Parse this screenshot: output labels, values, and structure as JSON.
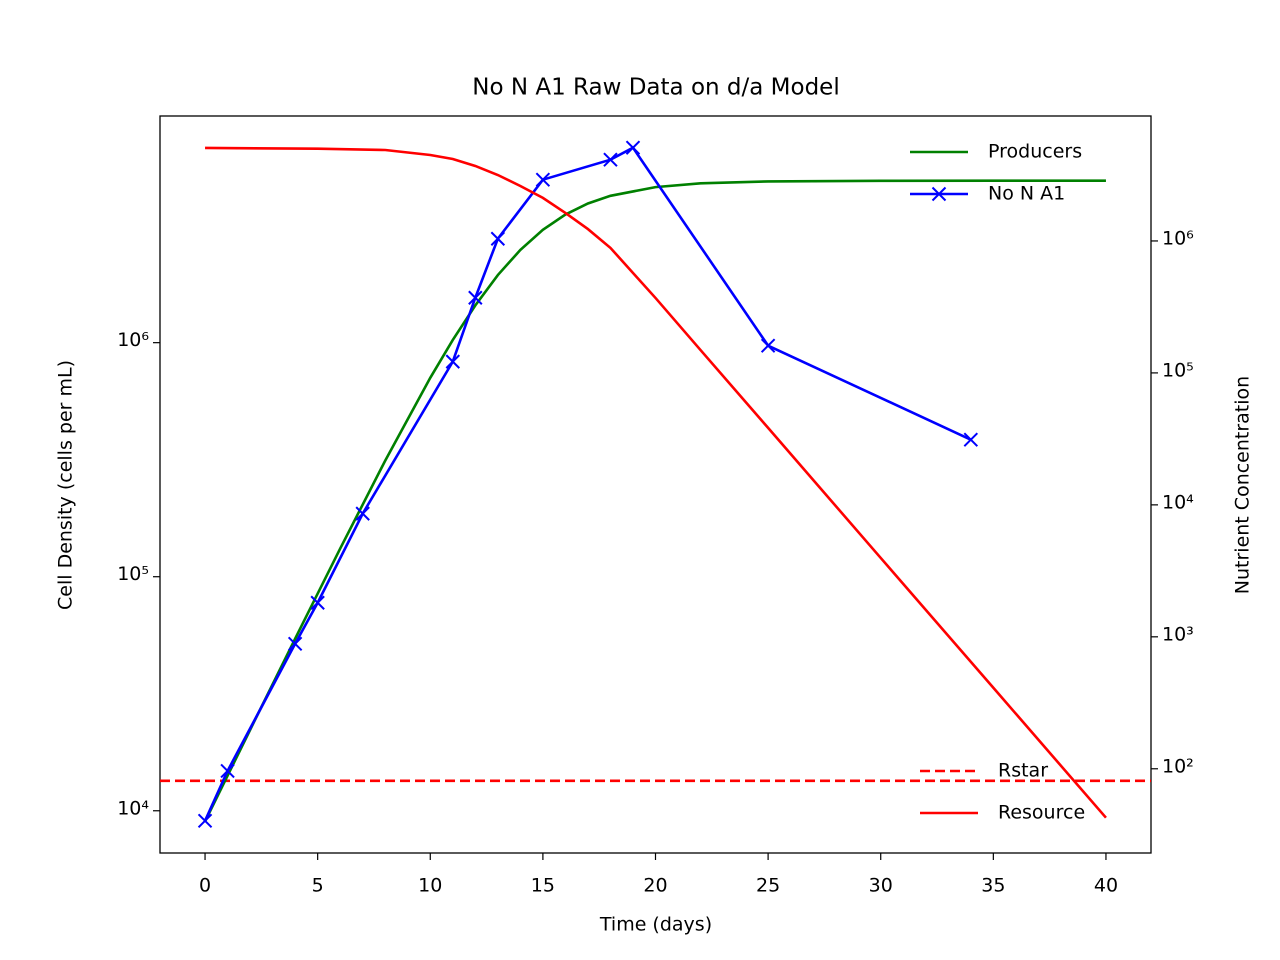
{
  "chart_data": {
    "type": "line",
    "title": "No N A1 Raw Data on d/a Model",
    "xlabel": "Time (days)",
    "ylabel": "Cell Density (cells per mL)",
    "y2label": "Nutrient Concentration",
    "xlim": [
      -2,
      42
    ],
    "xticks": [
      0,
      5,
      10,
      15,
      20,
      25,
      30,
      35,
      40
    ],
    "ylim": [
      6600,
      9300000
    ],
    "yscale": "log",
    "yticks": [
      {
        "value": 10000,
        "label": "10⁴"
      },
      {
        "value": 100000,
        "label": "10⁵"
      },
      {
        "value": 1000000,
        "label": "10⁶"
      }
    ],
    "y2lim": [
      23,
      8850000
    ],
    "y2scale": "log",
    "y2ticks": [
      {
        "value": 100,
        "label": "10²"
      },
      {
        "value": 1000,
        "label": "10³"
      },
      {
        "value": 10000,
        "label": "10⁴"
      },
      {
        "value": 100000,
        "label": "10⁵"
      },
      {
        "value": 1000000,
        "label": "10⁶"
      }
    ],
    "legend": "upper right",
    "legend2": "lower right",
    "series": [
      {
        "name": "Producers",
        "color": "#008000",
        "axis": "y",
        "x": [
          0,
          2,
          4,
          6,
          8,
          10,
          11,
          12,
          13,
          14,
          15,
          16,
          17,
          18,
          20,
          22,
          25,
          30,
          35,
          40
        ],
        "values": [
          9000,
          22160,
          54360,
          131900,
          313400,
          707900,
          1027000,
          1443000,
          1945000,
          2490000,
          3037000,
          3527000,
          3933000,
          4241000,
          4620000,
          4794000,
          4887000,
          4916000,
          4920000,
          4920000
        ]
      },
      {
        "name": "No N A1",
        "color": "#0000ff",
        "axis": "y",
        "marker": "x",
        "x": [
          0,
          1,
          4,
          5,
          7,
          11,
          12,
          13,
          15,
          18,
          19,
          25,
          34
        ],
        "values": [
          9060,
          14800,
          51700,
          77400,
          186000,
          830000,
          1556000,
          2780000,
          4970000,
          6050000,
          6810000,
          971000,
          385000
        ]
      },
      {
        "name": "Resource",
        "color": "#ff0000",
        "axis": "y2",
        "x": [
          0,
          5,
          8,
          10,
          11,
          12,
          13,
          14,
          15,
          16,
          17,
          18,
          20,
          22,
          25,
          30,
          35,
          40
        ],
        "values": [
          5070000,
          5000000,
          4890000,
          4480000,
          4180000,
          3700000,
          3160000,
          2610000,
          2120000,
          1630000,
          1230000,
          886000,
          370000,
          149000,
          38300,
          3960,
          411,
          42.6
        ]
      }
    ],
    "hlines": [
      {
        "name": "Rstar",
        "color": "#ff0000",
        "axis": "y2",
        "style": "dashed",
        "value": 81
      }
    ]
  }
}
